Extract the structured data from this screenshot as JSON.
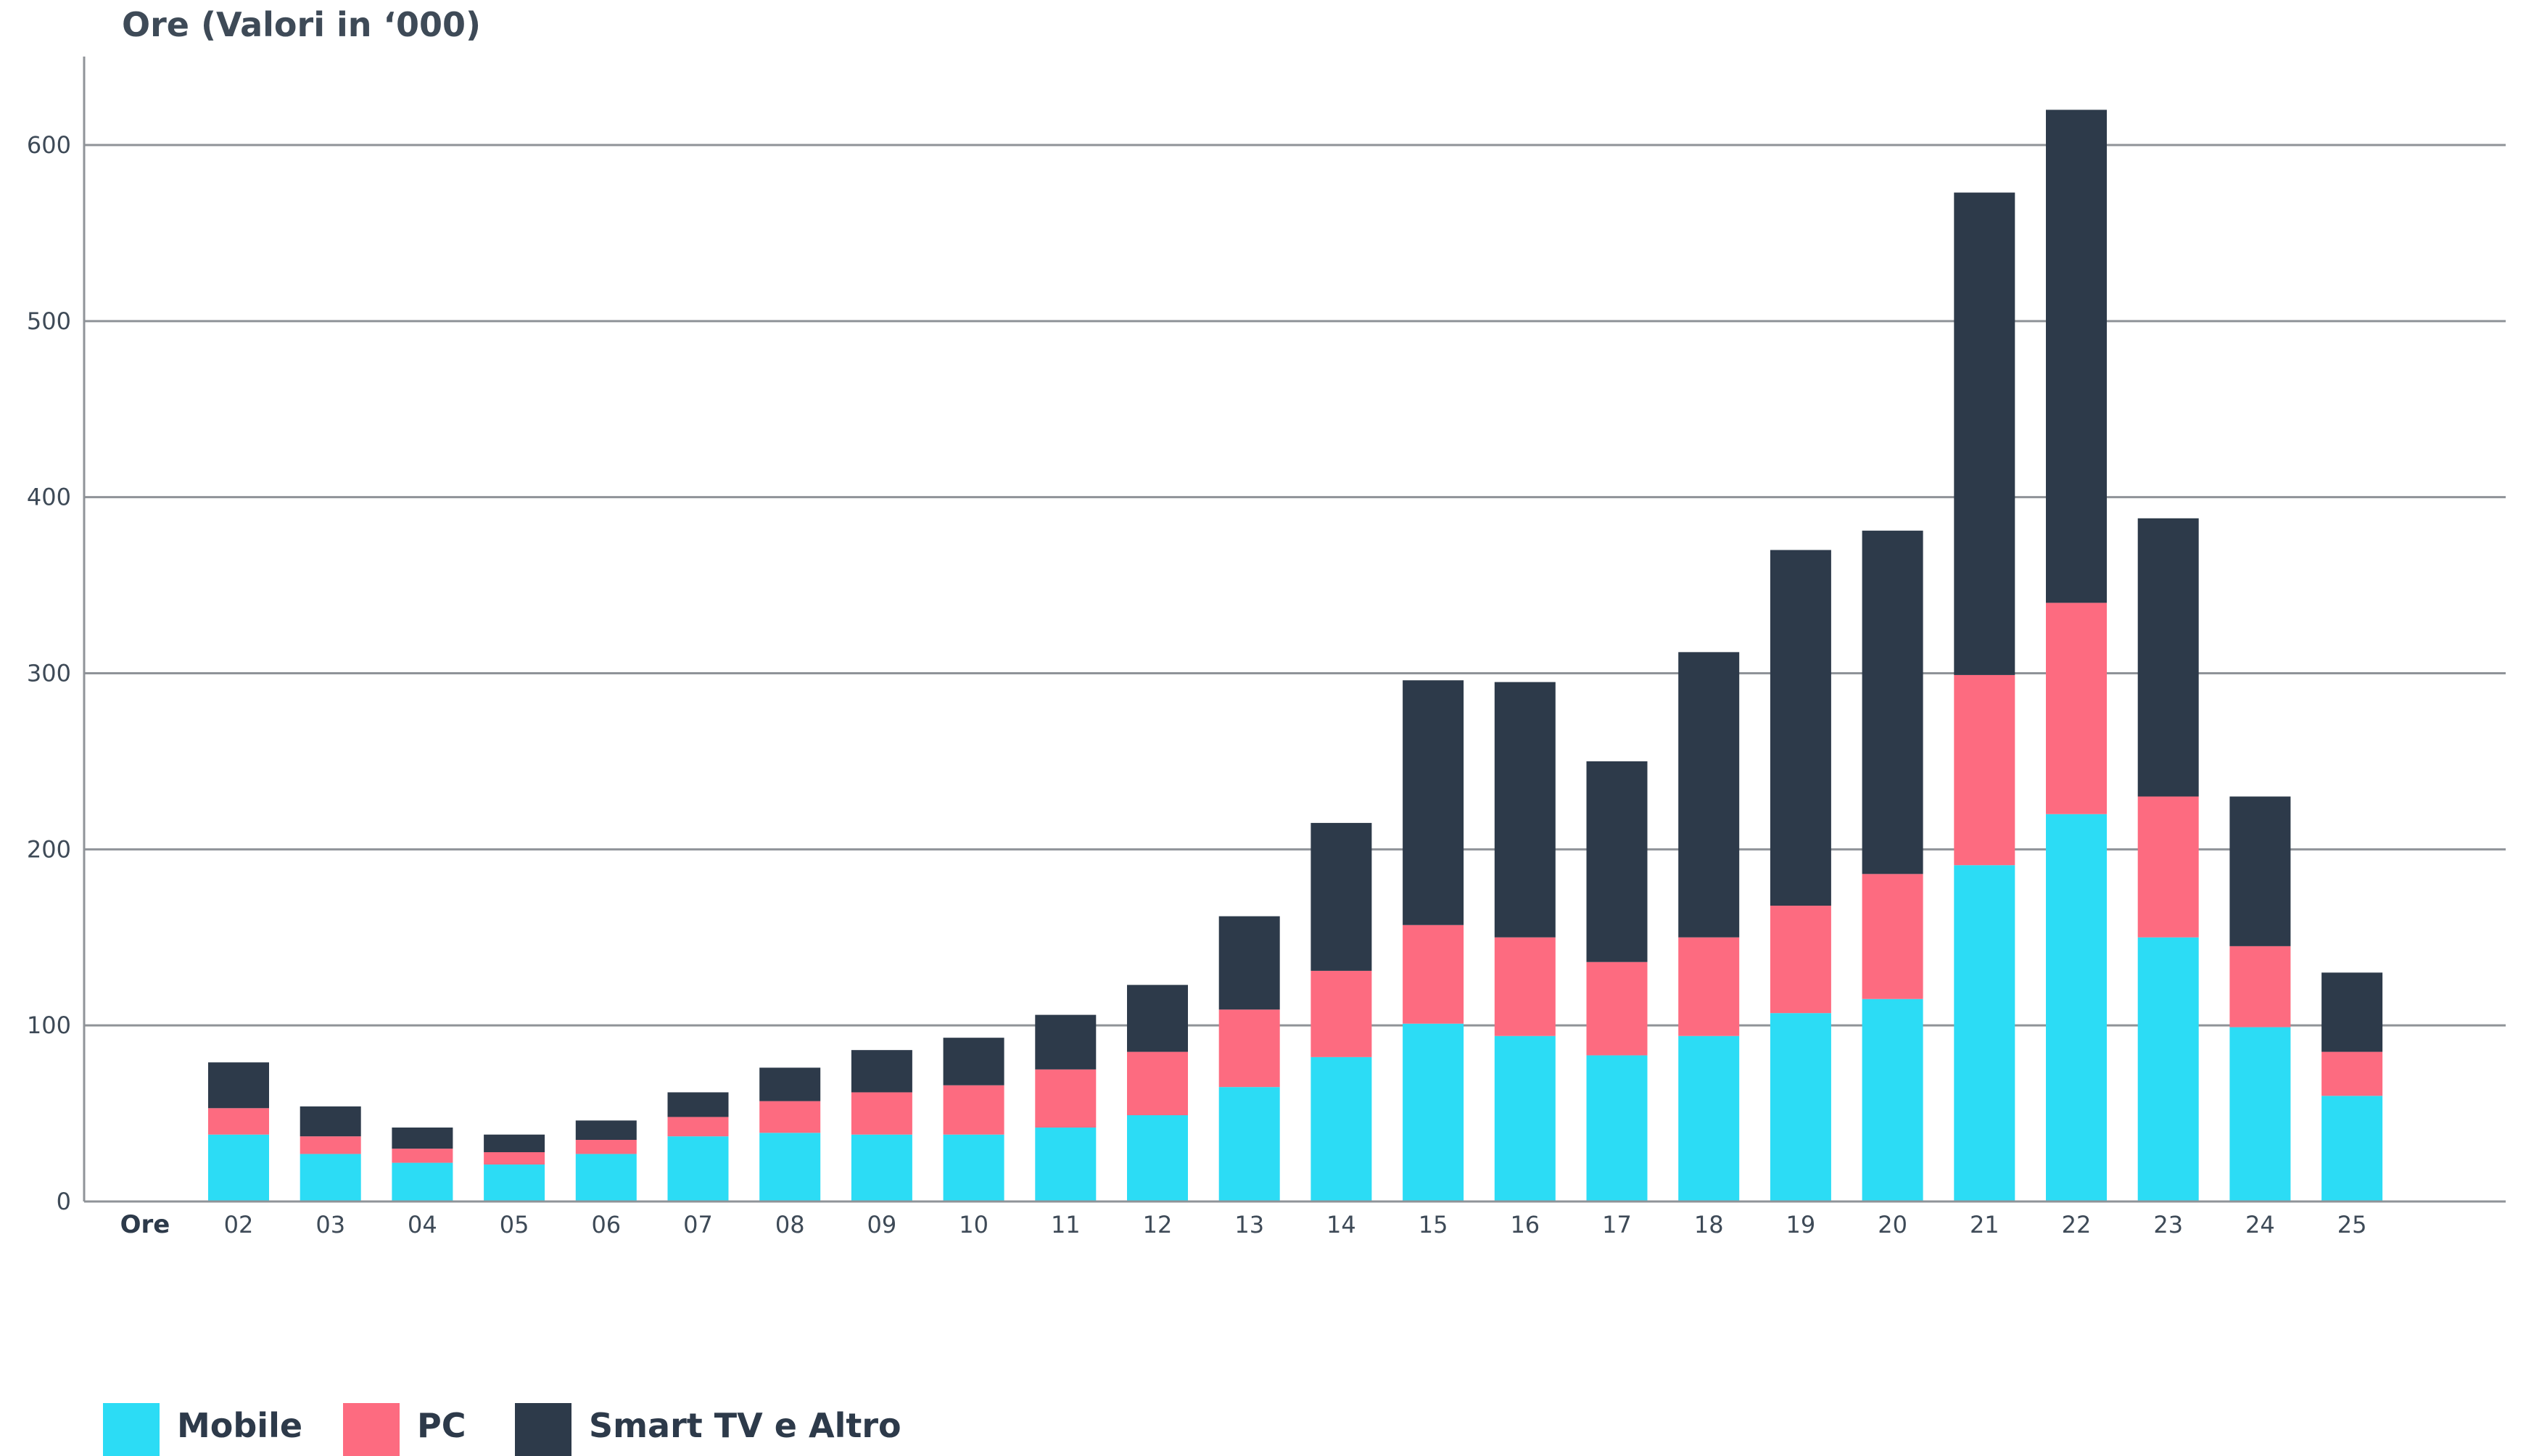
{
  "chart_data": {
    "type": "bar",
    "stacked": true,
    "title": "Ore (Valori in ‘000)",
    "xlabel": "Ore",
    "ylabel": "",
    "ylim": [
      0,
      650
    ],
    "yticks": [
      0,
      100,
      200,
      300,
      400,
      500,
      600
    ],
    "grid": true,
    "legend_position": "bottom-left",
    "categories": [
      "02",
      "03",
      "04",
      "05",
      "06",
      "07",
      "08",
      "09",
      "10",
      "11",
      "12",
      "13",
      "14",
      "15",
      "16",
      "17",
      "18",
      "19",
      "20",
      "21",
      "22",
      "23",
      "24",
      "25"
    ],
    "series": [
      {
        "name": "Mobile",
        "color": "#2cdcf5",
        "values": [
          38,
          27,
          22,
          21,
          27,
          37,
          39,
          38,
          38,
          42,
          49,
          65,
          82,
          101,
          94,
          83,
          94,
          107,
          115,
          191,
          220,
          150,
          99,
          60
        ]
      },
      {
        "name": "PC",
        "color": "#fd6b80",
        "values": [
          15,
          10,
          8,
          7,
          8,
          11,
          18,
          24,
          28,
          33,
          36,
          44,
          49,
          56,
          56,
          53,
          56,
          61,
          71,
          108,
          120,
          80,
          46,
          25
        ]
      },
      {
        "name": "Smart TV e Altro",
        "color": "#2d3a4a",
        "values": [
          26,
          17,
          12,
          10,
          11,
          14,
          19,
          24,
          27,
          31,
          38,
          53,
          84,
          139,
          145,
          114,
          162,
          202,
          195,
          274,
          280,
          158,
          85,
          45
        ]
      }
    ]
  }
}
